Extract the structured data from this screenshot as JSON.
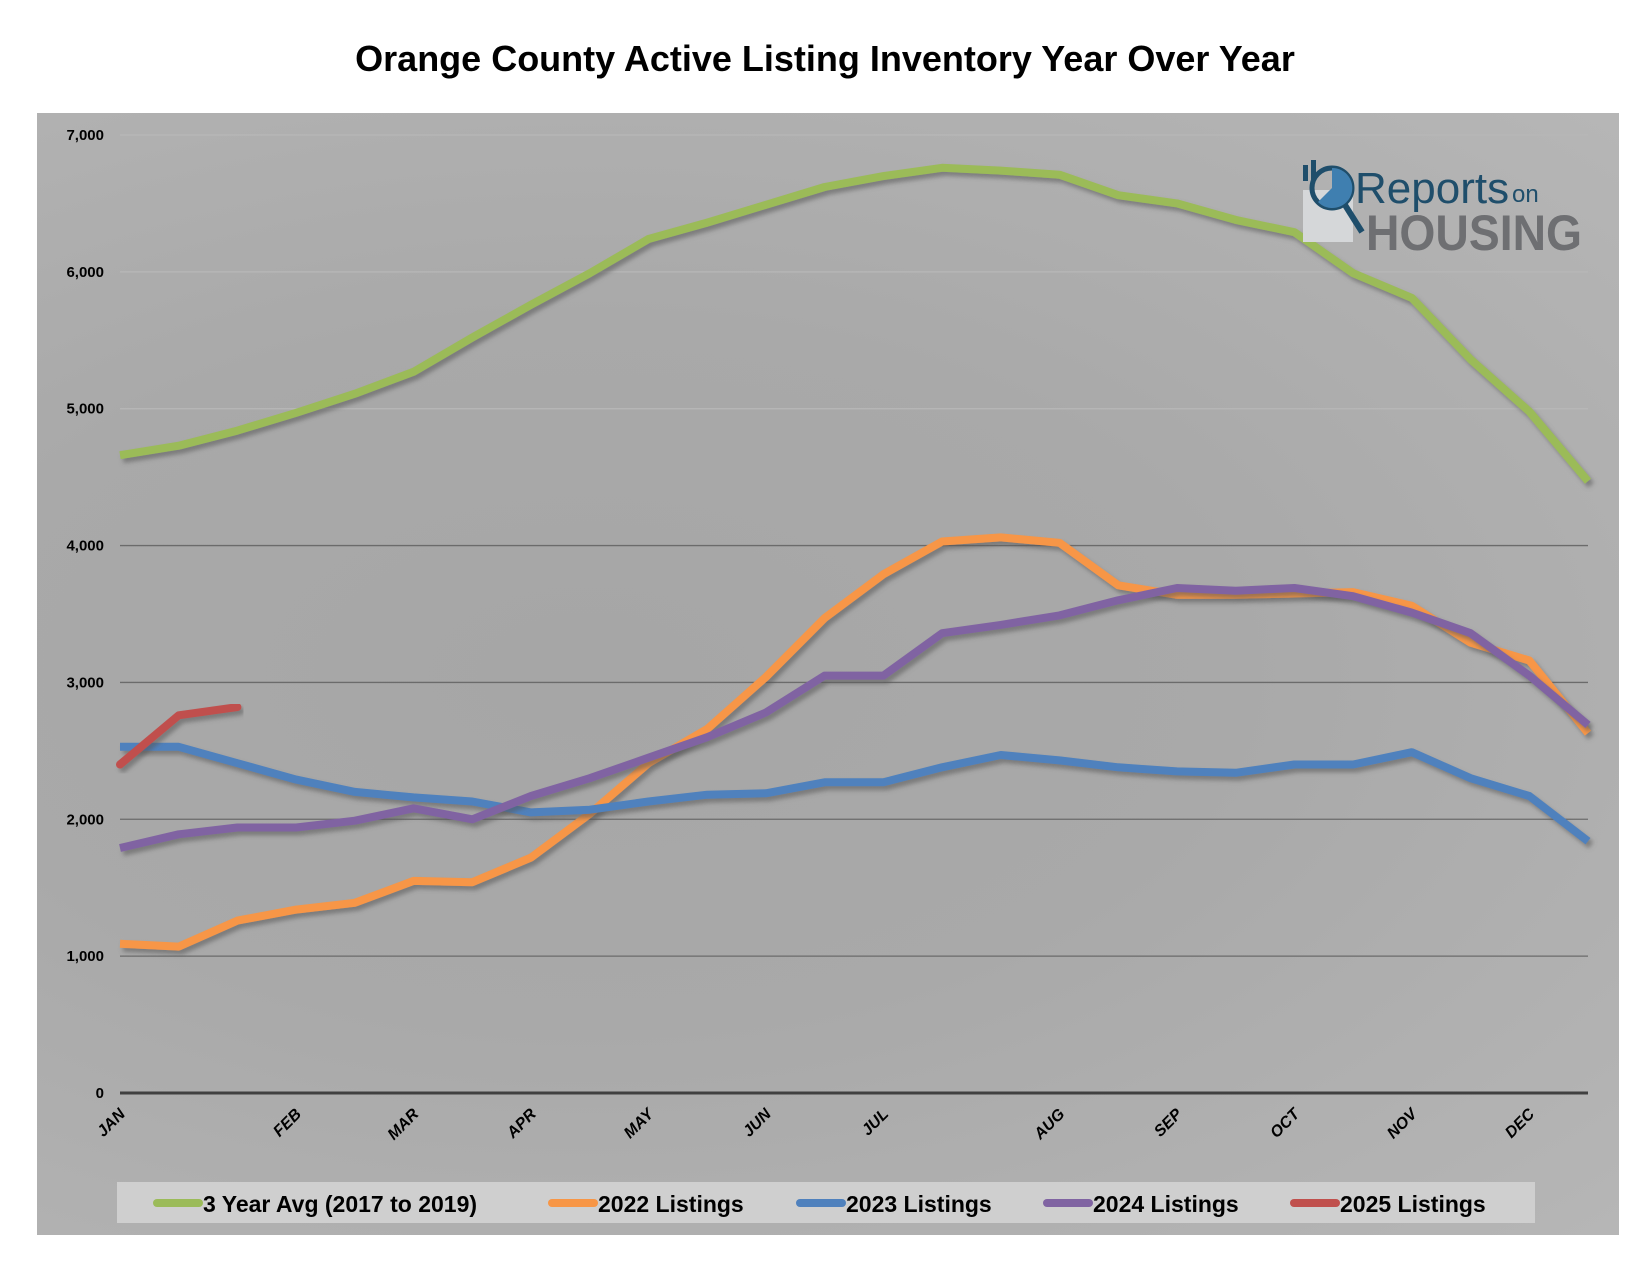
{
  "chart_data": {
    "type": "line",
    "title": "Orange County Active Listing Inventory Year Over Year",
    "xlabel": "",
    "ylabel": "",
    "ylim": [
      0,
      7000
    ],
    "yticks": [
      "0",
      "1,000",
      "2,000",
      "3,000",
      "4,000",
      "5,000",
      "6,000",
      "7,000"
    ],
    "ytick_values": [
      0,
      1000,
      2000,
      3000,
      4000,
      5000,
      6000,
      7000
    ],
    "xtick_labels": [
      "JAN",
      "FEB",
      "MAR",
      "APR",
      "MAY",
      "JUN",
      "JUL",
      "AUG",
      "SEP",
      "OCT",
      "NOV",
      "DEC"
    ],
    "xtick_positions": [
      0,
      3,
      5,
      7,
      9,
      11,
      13,
      16,
      18,
      20,
      22,
      24
    ],
    "point_count": 26,
    "grid": true,
    "legend_position": "bottom",
    "series": [
      {
        "name": "3 Year Avg (2017 to 2019)",
        "color": "#9bbb59",
        "values": [
          4660,
          4730,
          4840,
          4970,
          5110,
          5270,
          5520,
          5760,
          5990,
          6240,
          6360,
          6490,
          6620,
          6700,
          6760,
          6740,
          6710,
          6560,
          6500,
          6380,
          6290,
          5990,
          5810,
          5360,
          4980,
          4470
        ]
      },
      {
        "name": "2022 Listings",
        "color": "#f79646",
        "values": [
          1090,
          1070,
          1260,
          1340,
          1390,
          1550,
          1540,
          1720,
          2040,
          2410,
          2660,
          3040,
          3470,
          3790,
          4030,
          4060,
          4020,
          3710,
          3640,
          3640,
          3650,
          3660,
          3560,
          3290,
          3160,
          2630
        ]
      },
      {
        "name": "2023 Listings",
        "color": "#4f81bd",
        "values": [
          2530,
          2530,
          2410,
          2290,
          2200,
          2160,
          2130,
          2050,
          2070,
          2130,
          2180,
          2190,
          2270,
          2270,
          2380,
          2470,
          2430,
          2380,
          2350,
          2340,
          2400,
          2400,
          2490,
          2300,
          2170,
          1840
        ]
      },
      {
        "name": "2024 Listings",
        "color": "#8064a2",
        "values": [
          1790,
          1890,
          1940,
          1940,
          1990,
          2080,
          2000,
          2170,
          2300,
          2450,
          2600,
          2780,
          3050,
          3050,
          3360,
          3420,
          3490,
          3600,
          3690,
          3670,
          3690,
          3630,
          3510,
          3360,
          3050,
          2690
        ]
      },
      {
        "name": "2025 Listings",
        "color": "#c0504d",
        "values": [
          2400,
          2760,
          2820
        ]
      }
    ]
  },
  "logo": {
    "line1": "Reports",
    "line1b": "on",
    "line2": "HOUSING"
  }
}
